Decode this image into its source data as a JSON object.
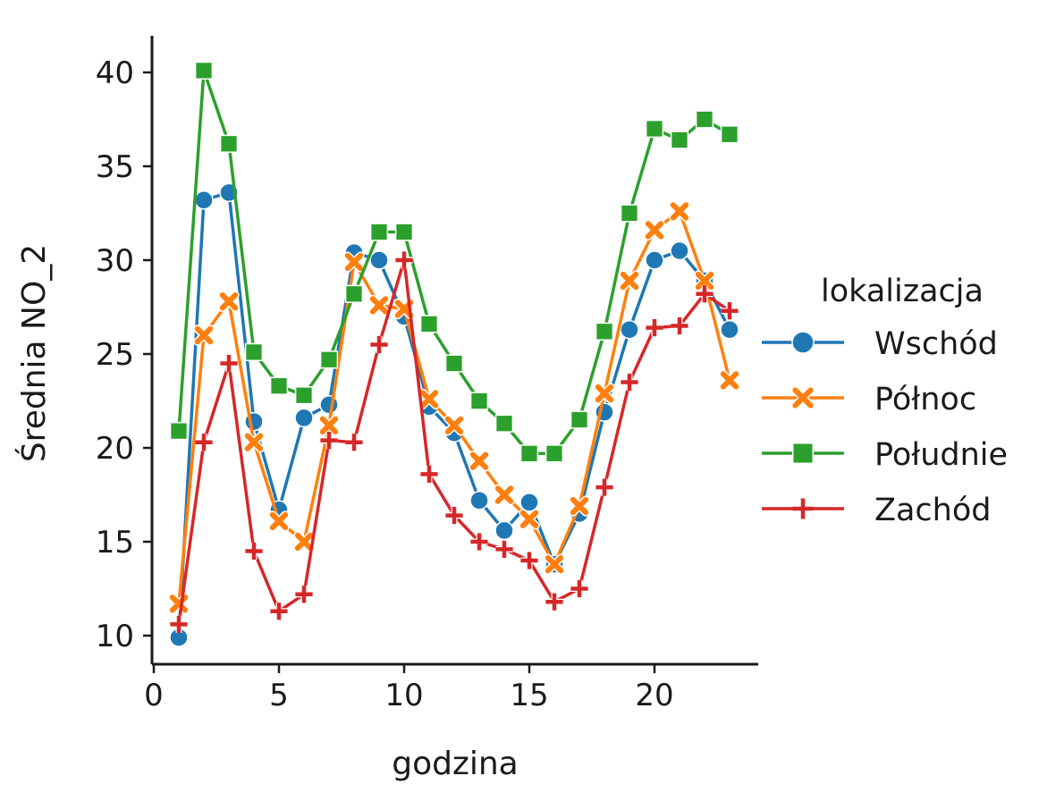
{
  "chart_data": {
    "type": "line",
    "xlabel": "godzina",
    "ylabel": "Średnia NO_2",
    "xlim": [
      0,
      24
    ],
    "ylim": [
      9,
      42
    ],
    "xticks": [
      0,
      5,
      10,
      15,
      20
    ],
    "yticks": [
      10,
      15,
      20,
      25,
      30,
      35,
      40
    ],
    "grid": false,
    "legend": {
      "title": "lokalizacja",
      "placement": "right"
    },
    "x": [
      1,
      2,
      3,
      4,
      5,
      6,
      7,
      8,
      9,
      10,
      11,
      12,
      13,
      14,
      15,
      16,
      17,
      18,
      19,
      20,
      21,
      22,
      23
    ],
    "series": [
      {
        "name": "Wschód",
        "color": "#1f77b4",
        "marker": "circle",
        "values": [
          9.9,
          33.2,
          33.6,
          21.4,
          16.7,
          21.6,
          22.3,
          30.4,
          30.0,
          27.0,
          22.2,
          20.8,
          17.2,
          15.6,
          17.1,
          13.8,
          16.5,
          21.9,
          26.3,
          30.0,
          30.5,
          28.9,
          26.3
        ]
      },
      {
        "name": "Północ",
        "color": "#ff7f0e",
        "marker": "x",
        "values": [
          11.7,
          26.0,
          27.8,
          20.3,
          16.1,
          15.0,
          21.2,
          29.9,
          27.6,
          27.4,
          22.6,
          21.2,
          19.3,
          17.5,
          16.2,
          13.8,
          16.9,
          22.9,
          28.9,
          31.6,
          32.6,
          28.9,
          23.6
        ]
      },
      {
        "name": "Południe",
        "color": "#2ca02c",
        "marker": "square",
        "values": [
          20.9,
          40.1,
          36.2,
          25.1,
          23.3,
          22.8,
          24.7,
          28.2,
          31.5,
          31.5,
          26.6,
          24.5,
          22.5,
          21.3,
          19.7,
          19.7,
          21.5,
          26.2,
          32.5,
          37.0,
          36.4,
          37.5,
          36.7
        ]
      },
      {
        "name": "Zachód",
        "color": "#d62728",
        "marker": "plus",
        "values": [
          10.6,
          20.3,
          24.5,
          14.5,
          11.3,
          12.2,
          20.4,
          20.3,
          25.5,
          30.0,
          18.6,
          16.4,
          15.0,
          14.6,
          14.0,
          11.8,
          12.5,
          17.9,
          23.5,
          26.4,
          26.5,
          28.2,
          27.3
        ]
      }
    ]
  }
}
